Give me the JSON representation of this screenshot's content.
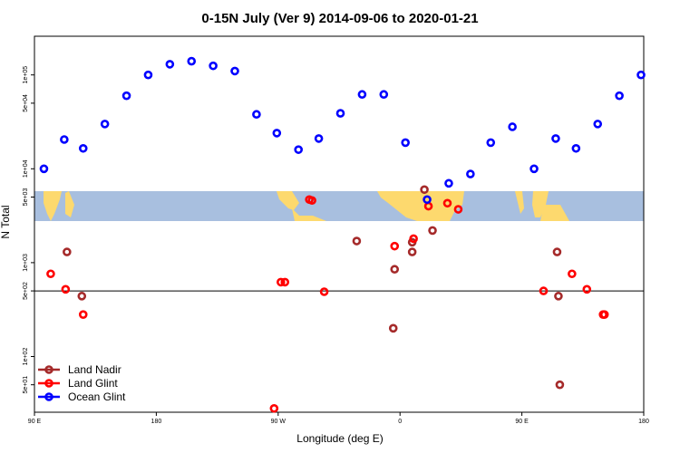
{
  "chart_data": {
    "type": "scatter",
    "title": "0-15N July (Ver 9)   2014-09-06 to 2020-01-21",
    "xlabel": "Longitude (deg E)",
    "ylabel": "N Total",
    "y_scale": "log",
    "x_ticks": [
      {
        "value": 90,
        "label": "90 E"
      },
      {
        "value": 180,
        "label": "180"
      },
      {
        "value": 270,
        "label": "90 W"
      },
      {
        "value": 360,
        "label": "0"
      },
      {
        "value": 450,
        "label": "90 E"
      },
      {
        "value": 540,
        "label": "180"
      }
    ],
    "y_ticks": [
      {
        "value": 50,
        "label": "5e+01"
      },
      {
        "value": 100,
        "label": "1e+02"
      },
      {
        "value": 500,
        "label": "5e+02"
      },
      {
        "value": 1000,
        "label": "1e+03"
      },
      {
        "value": 5000,
        "label": "5e+03"
      },
      {
        "value": 10000,
        "label": "1e+04"
      },
      {
        "value": 50000,
        "label": "5e+04"
      },
      {
        "value": 100000,
        "label": "1e+05"
      }
    ],
    "reference_line_y": 500,
    "land_colors": {
      "ocean": "#a8bfdf",
      "land": "#fdd96e"
    },
    "series": [
      {
        "name": "Land Nadir",
        "color": "#a52a2a",
        "x": [
          114,
          125,
          328,
          355,
          356,
          369,
          369,
          378,
          384,
          476,
          477,
          478
        ],
        "y": [
          1300,
          440,
          1700,
          200,
          850,
          1300,
          1650,
          6000,
          2200,
          1300,
          440,
          50
        ]
      },
      {
        "name": "Land Glint",
        "color": "#ff0000",
        "x": [
          102,
          113,
          126,
          267,
          275,
          272,
          293,
          295,
          304,
          356,
          370,
          381,
          395,
          403,
          466,
          487,
          498,
          510,
          511
        ],
        "y": [
          760,
          520,
          280,
          28,
          620,
          620,
          4700,
          4600,
          490,
          1500,
          1800,
          4000,
          4300,
          3700,
          500,
          760,
          520,
          280,
          280
        ]
      },
      {
        "name": "Ocean Glint",
        "color": "#0000ff",
        "x": [
          97,
          112,
          126,
          142,
          158,
          174,
          190,
          206,
          222,
          238,
          254,
          269,
          285,
          300,
          316,
          332,
          348,
          364,
          380,
          396,
          412,
          427,
          443,
          459,
          475,
          490,
          506,
          522,
          538
        ],
        "y": [
          10000,
          20500,
          16500,
          30000,
          60000,
          100000,
          130000,
          140000,
          125000,
          110000,
          38000,
          24000,
          16000,
          21000,
          39000,
          62000,
          62000,
          19000,
          4700,
          7000,
          8800,
          19000,
          28000,
          10000,
          21000,
          16500,
          30000,
          60000,
          100000
        ]
      }
    ],
    "legend_position": "bottom-left"
  }
}
